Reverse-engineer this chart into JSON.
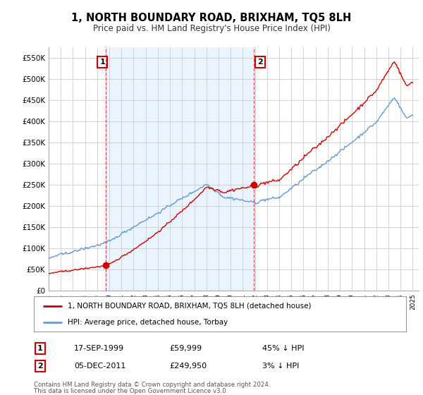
{
  "title": "1, NORTH BOUNDARY ROAD, BRIXHAM, TQ5 8LH",
  "subtitle": "Price paid vs. HM Land Registry's House Price Index (HPI)",
  "sale1_date": 1999.72,
  "sale1_price": 59999,
  "sale1_label": "1",
  "sale1_display": "17-SEP-1999",
  "sale1_pct": "45% ↓ HPI",
  "sale2_date": 2011.92,
  "sale2_price": 249950,
  "sale2_label": "2",
  "sale2_display": "05-DEC-2011",
  "sale2_pct": "3% ↓ HPI",
  "legend_line1": "1, NORTH BOUNDARY ROAD, BRIXHAM, TQ5 8LH (detached house)",
  "legend_line2": "HPI: Average price, detached house, Torbay",
  "footer1": "Contains HM Land Registry data © Crown copyright and database right 2024.",
  "footer2": "This data is licensed under the Open Government Licence v3.0.",
  "ylim": [
    0,
    575000
  ],
  "yticks": [
    0,
    50000,
    100000,
    150000,
    200000,
    250000,
    300000,
    350000,
    400000,
    450000,
    500000,
    550000
  ],
  "ytick_labels": [
    "£0",
    "£50K",
    "£100K",
    "£150K",
    "£200K",
    "£250K",
    "£300K",
    "£350K",
    "£400K",
    "£450K",
    "£500K",
    "£550K"
  ],
  "color_red": "#cc0000",
  "color_blue": "#6699cc",
  "color_shade": "#ddeeff",
  "color_dashed": "#cc0000",
  "bg_color": "#ffffff",
  "grid_color": "#cccccc"
}
